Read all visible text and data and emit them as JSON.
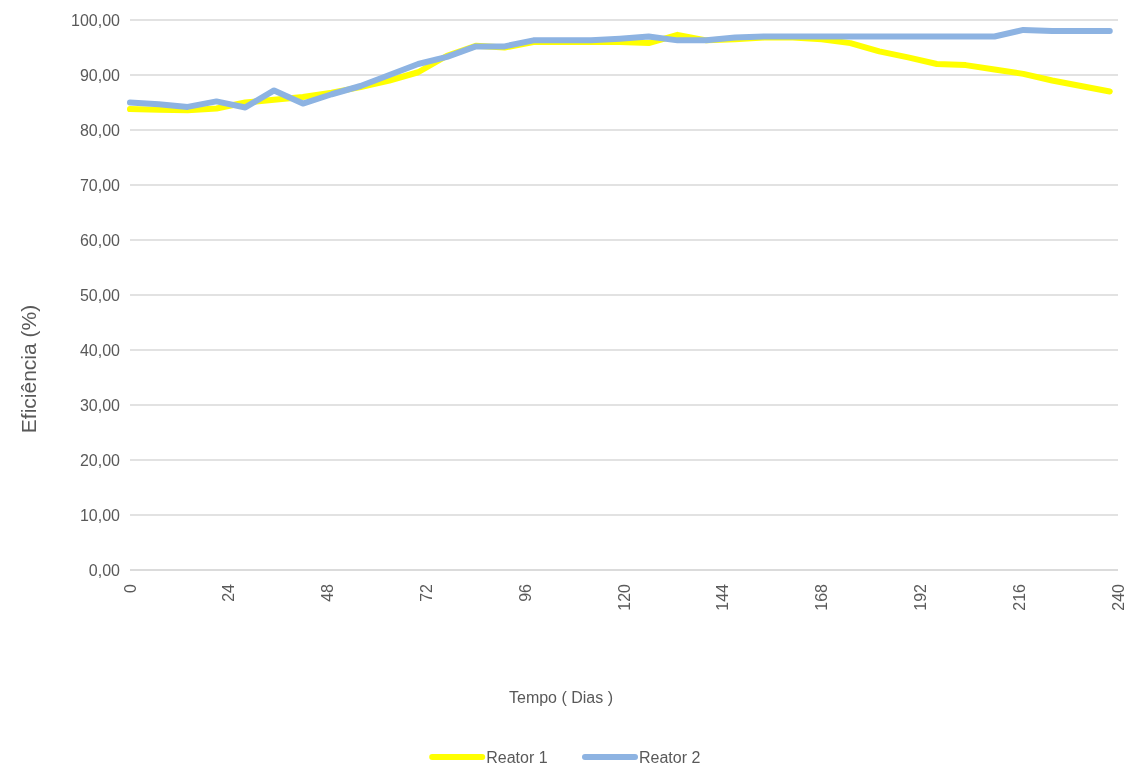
{
  "chart_data": {
    "type": "line",
    "xlabel": "Tempo ( Dias )",
    "ylabel": "Eficiência (%)",
    "x": [
      0,
      7,
      14,
      21,
      28,
      35,
      42,
      49,
      56,
      63,
      70,
      77,
      84,
      91,
      98,
      105,
      112,
      119,
      126,
      133,
      140,
      147,
      154,
      161,
      168,
      175,
      182,
      189,
      196,
      203,
      210,
      217,
      224,
      231,
      238
    ],
    "xlim": [
      0,
      240
    ],
    "xticks": [
      0,
      24,
      48,
      72,
      96,
      120,
      144,
      168,
      192,
      216,
      240
    ],
    "ylim": [
      0,
      100
    ],
    "yticks": [
      {
        "value": 0,
        "label": "0,00"
      },
      {
        "value": 10,
        "label": "10,00"
      },
      {
        "value": 20,
        "label": "20,00"
      },
      {
        "value": 30,
        "label": "30,00"
      },
      {
        "value": 40,
        "label": "40,00"
      },
      {
        "value": 50,
        "label": "50,00"
      },
      {
        "value": 60,
        "label": "60,00"
      },
      {
        "value": 70,
        "label": "70,00"
      },
      {
        "value": 80,
        "label": "80,00"
      },
      {
        "value": 90,
        "label": "90,00"
      },
      {
        "value": 100,
        "label": "100,00"
      }
    ],
    "series": [
      {
        "name": "Reator 1",
        "color": "#ffff00",
        "values": [
          83.8,
          83.7,
          83.6,
          83.9,
          85.0,
          85.5,
          86.0,
          86.8,
          87.8,
          89.0,
          90.5,
          93.5,
          95.3,
          95.0,
          96.0,
          96.0,
          96.0,
          96.0,
          95.8,
          97.3,
          96.3,
          96.5,
          96.8,
          96.8,
          96.5,
          95.8,
          94.3,
          93.2,
          92.0,
          91.8,
          91.0,
          90.2,
          89.0,
          88.0,
          87.0
        ]
      },
      {
        "name": "Reator 2",
        "color": "#8db3e2",
        "values": [
          85.0,
          84.7,
          84.2,
          85.2,
          84.1,
          87.2,
          84.8,
          86.5,
          88.0,
          90.0,
          92.0,
          93.3,
          95.2,
          95.2,
          96.3,
          96.3,
          96.3,
          96.6,
          97.0,
          96.3,
          96.3,
          96.8,
          97.0,
          97.0,
          97.0,
          97.0,
          97.0,
          97.0,
          97.0,
          97.0,
          97.0,
          98.2,
          98.0,
          98.0,
          98.0
        ]
      }
    ],
    "grid": "y",
    "legend": "bottom",
    "line_style": "solid"
  }
}
